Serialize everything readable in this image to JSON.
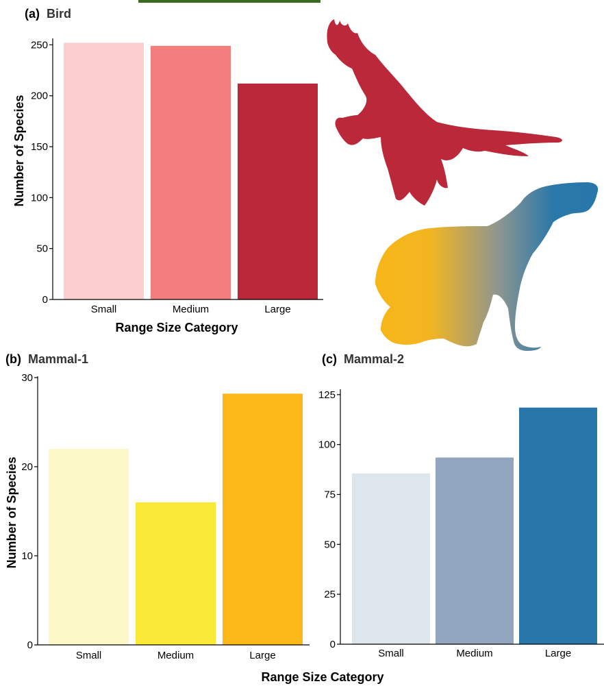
{
  "top_bar_color": "#3a6b1e",
  "chart_data": [
    {
      "type": "bar",
      "panel_letter": "(a)",
      "title": "Bird",
      "categories": [
        "Small",
        "Medium",
        "Large"
      ],
      "values": [
        252,
        249,
        212
      ],
      "colors": [
        "#fbcfcf",
        "#f27e7e",
        "#ba2839"
      ],
      "ylim": [
        0,
        255
      ],
      "yticks": [
        0,
        50,
        100,
        150,
        200,
        250
      ],
      "xlabel": "Range Size Category",
      "ylabel": "Number of Species",
      "grid": false,
      "silhouette": "bird-silhouette-icon"
    },
    {
      "type": "bar",
      "panel_letter": "(b)",
      "title": "Mammal-1",
      "categories": [
        "Small",
        "Medium",
        "Large"
      ],
      "values": [
        22,
        16,
        28.2
      ],
      "colors": [
        "#fdf8c8",
        "#fbe937",
        "#fcb816"
      ],
      "ylim": [
        0,
        30
      ],
      "yticks": [
        0,
        10,
        20,
        30
      ],
      "xlabel": "",
      "ylabel": "Number of Species",
      "grid": false
    },
    {
      "type": "bar",
      "panel_letter": "(c)",
      "title": "Mammal-2",
      "categories": [
        "Small",
        "Medium",
        "Large"
      ],
      "values": [
        85.5,
        93.5,
        118.5
      ],
      "colors": [
        "#dde5ed",
        "#91a6be",
        "#2877aa"
      ],
      "ylim": [
        0,
        127
      ],
      "yticks": [
        0,
        25,
        50,
        75,
        100,
        125
      ],
      "xlabel": "",
      "ylabel": "",
      "grid": false,
      "silhouette": "capybara-silhouette-icon"
    }
  ],
  "shared_xlabel": "Range Size Category"
}
